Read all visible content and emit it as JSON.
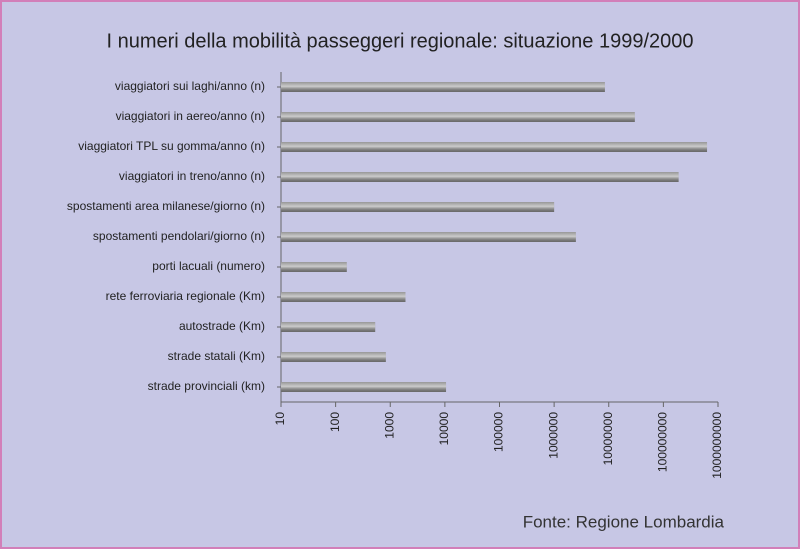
{
  "chart_data": {
    "type": "barh",
    "title": "I numeri della mobilità passeggeri regionale: situazione 1999/2000",
    "source": "Fonte: Regione Lombardia",
    "categories": [
      "viaggiatori sui laghi/anno (n)",
      "viaggiatori in aereo/anno (n)",
      "viaggiatori TPL su gomma/anno (n)",
      "viaggiatori in treno/anno (n)",
      "spostamenti area milanese/giorno (n)",
      "spostamenti pendolari/giorno (n)",
      "porti lacuali (numero)",
      "rete ferroviaria regionale (Km)",
      "autostrade (Km)",
      "strade statali (Km)",
      "strade provinciali (km)"
    ],
    "values": [
      8500000,
      30000000,
      630000000,
      190000000,
      1000000,
      2500000,
      160,
      1900,
      530,
      830,
      10500
    ],
    "color": "#8c8c8c",
    "xlim": [
      10,
      1000000000
    ],
    "xticks": [
      10,
      100,
      1000,
      10000,
      100000,
      1000000,
      10000000,
      100000000,
      1000000000
    ],
    "xscale": "log"
  }
}
